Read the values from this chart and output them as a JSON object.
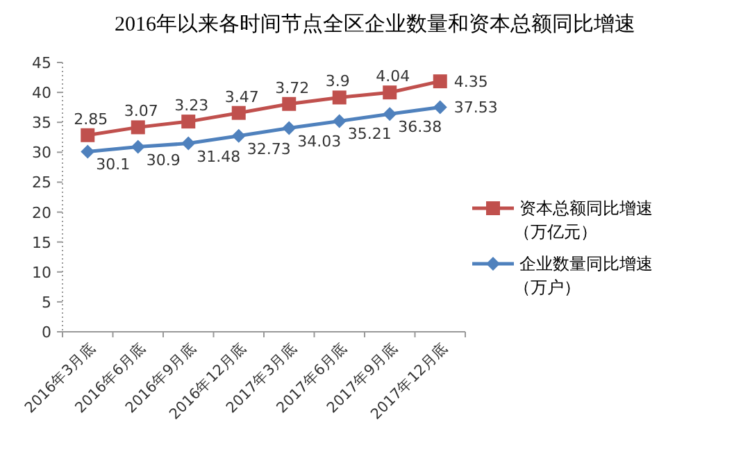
{
  "chart_data": {
    "type": "line",
    "title": "2016年以来各时间节点全区企业数量和资本总额同比增速",
    "categories": [
      "2016年3月底",
      "2016年6月底",
      "2016年9月底",
      "2016年12月底",
      "2017年3月底",
      "2017年6月底",
      "2017年9月底",
      "2017年12月底"
    ],
    "series": [
      {
        "name": "资本总额同比增速（万亿元）",
        "color": "#c0504d",
        "marker": "square",
        "axis": "y2",
        "values": [
          2.85,
          3.07,
          3.23,
          3.47,
          3.72,
          3.9,
          4.04,
          4.35
        ]
      },
      {
        "name": "企业数量同比增速（万户）",
        "color": "#4f81bd",
        "marker": "diamond",
        "values": [
          30.1,
          30.9,
          31.48,
          32.73,
          34.03,
          35.21,
          36.38,
          37.53
        ]
      }
    ],
    "ylim": [
      0,
      45
    ],
    "data_labels": true,
    "yticks": [
      0,
      5,
      10,
      15,
      20,
      25,
      30,
      35,
      40,
      45
    ],
    "legend": "right",
    "grid": false,
    "line_style": "solid"
  }
}
